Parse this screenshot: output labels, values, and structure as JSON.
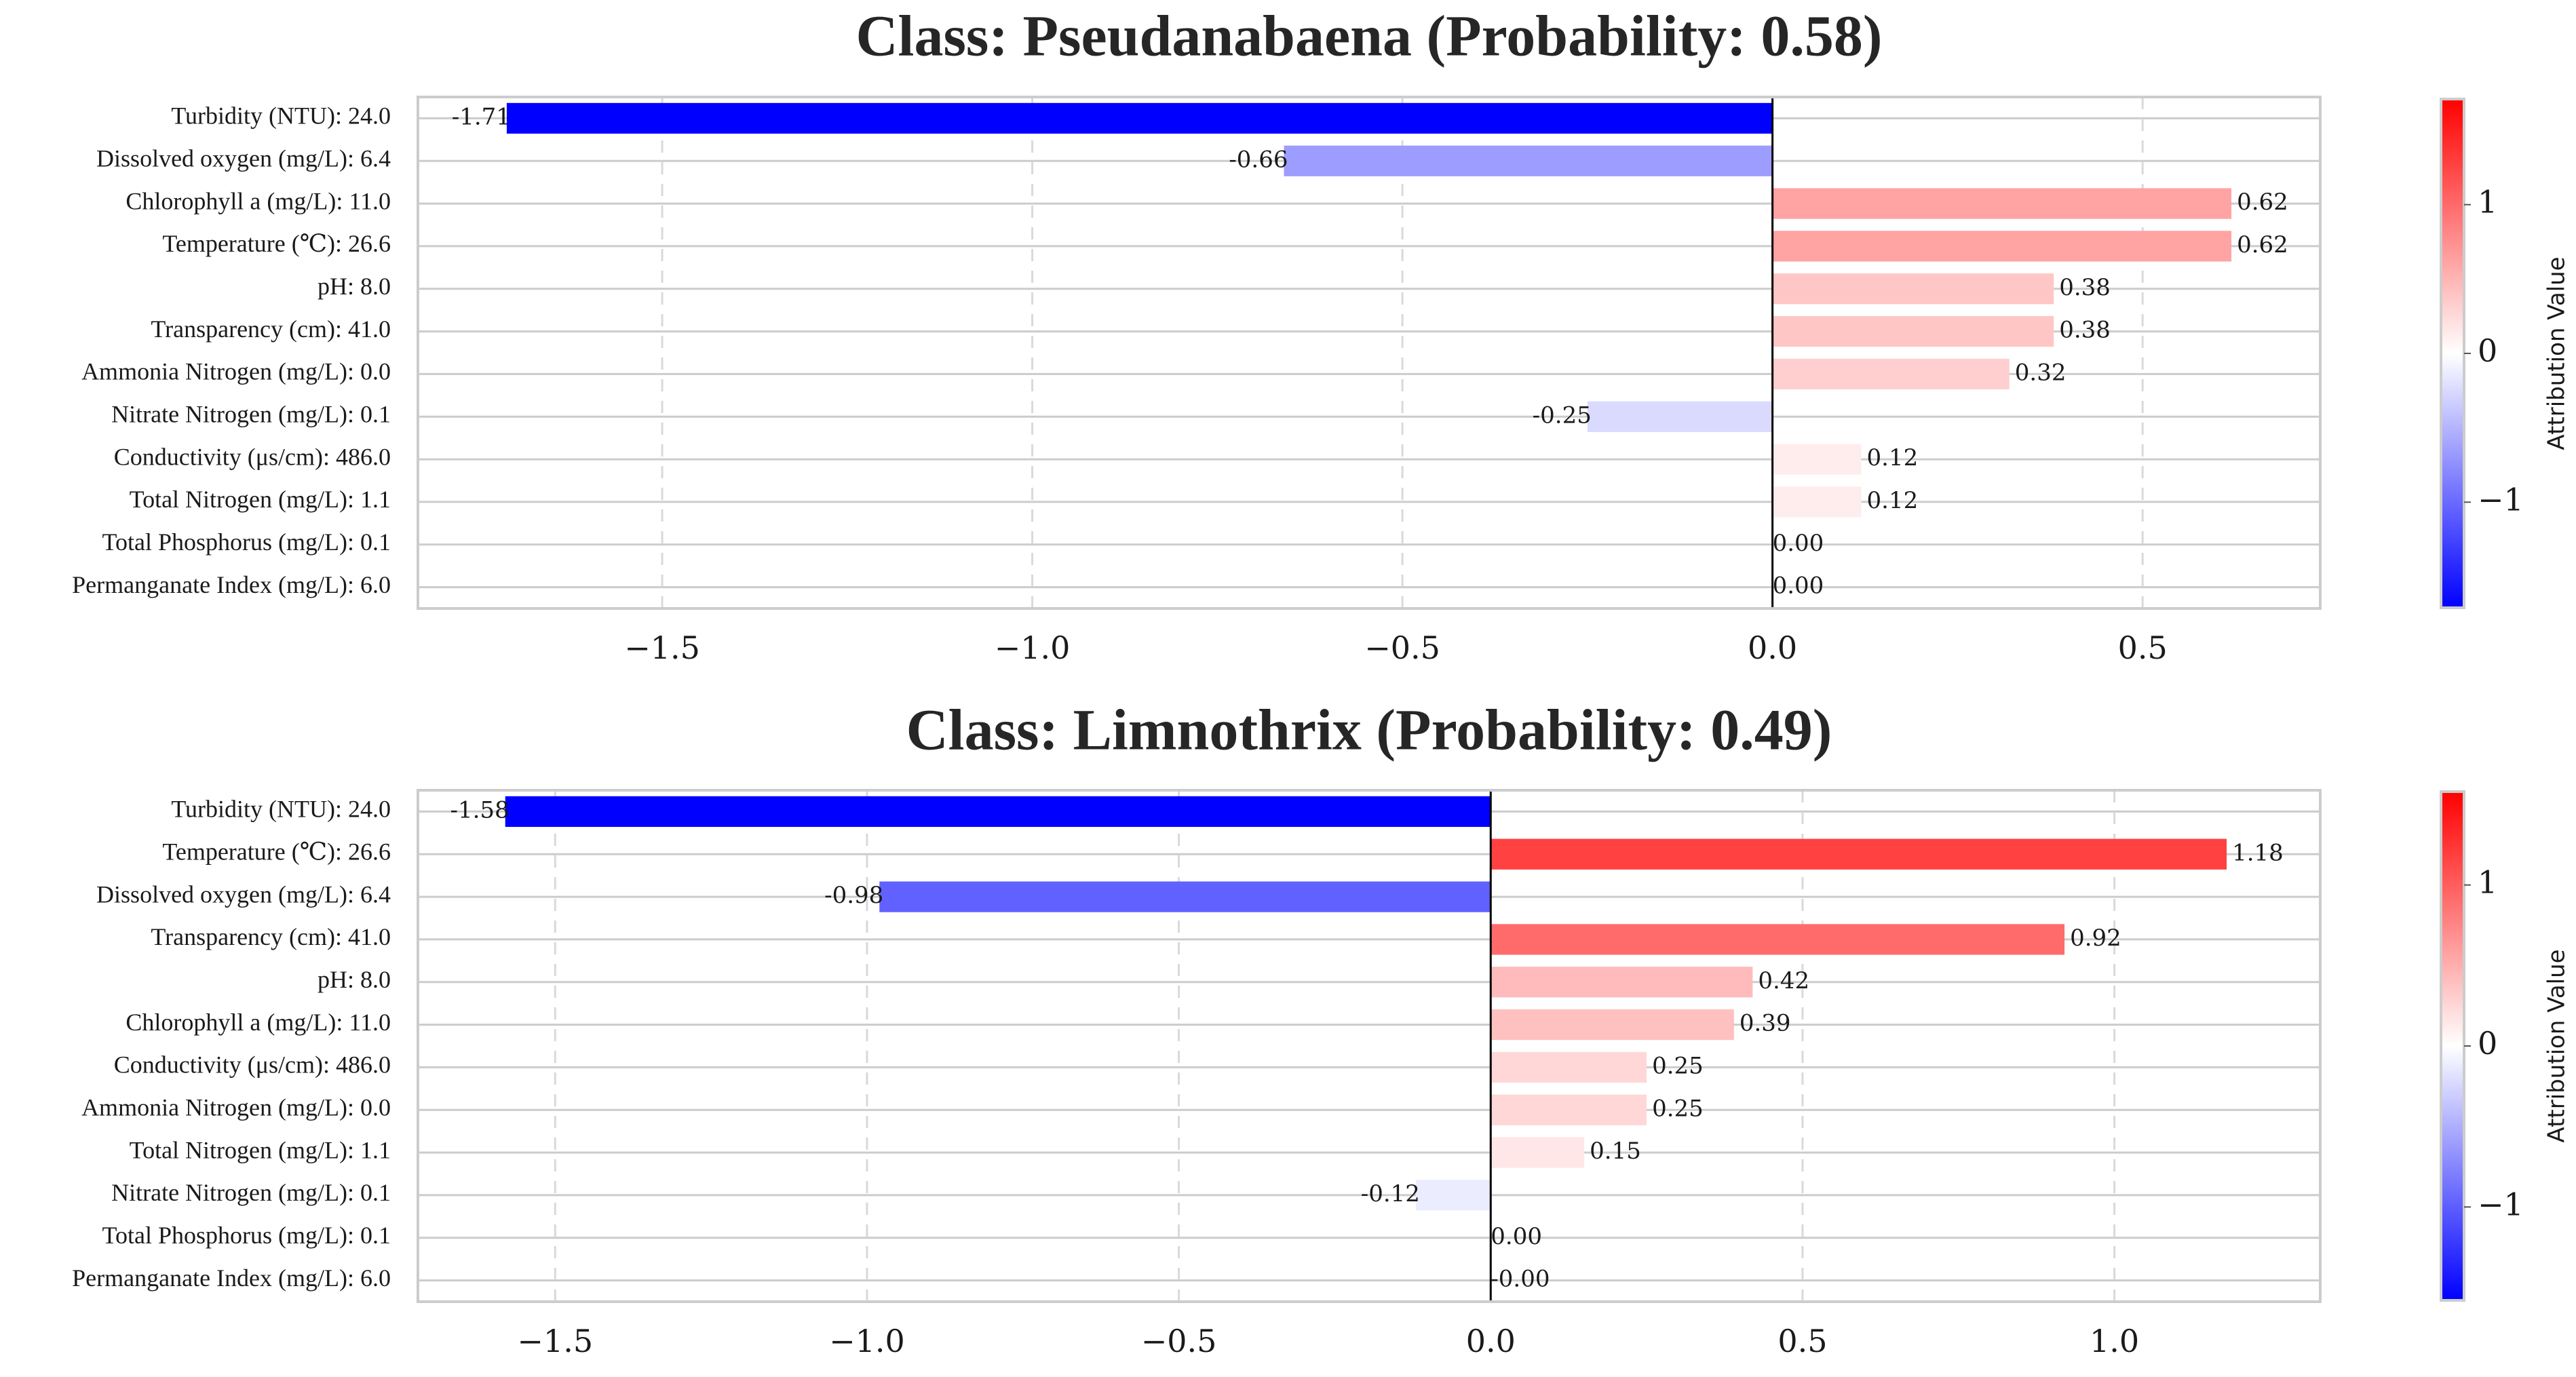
{
  "chart_data": [
    {
      "type": "bar",
      "orientation": "horizontal",
      "title": "Class: Pseudanabaena (Probability: 0.58)",
      "categories": [
        "Turbidity (NTU): 24.0",
        "Dissolved oxygen (mg/L): 6.4",
        "Chlorophyll a (mg/L): 11.0",
        "Temperature (℃): 26.6",
        "pH: 8.0",
        "Transparency (cm): 41.0",
        "Ammonia Nitrogen (mg/L): 0.0",
        "Nitrate Nitrogen (mg/L): 0.1",
        "Conductivity (μs/cm): 486.0",
        "Total Nitrogen (mg/L): 1.1",
        "Total Phosphorus (mg/L): 0.1",
        "Permanganate Index (mg/L): 6.0"
      ],
      "values": [
        -1.71,
        -0.66,
        0.62,
        0.62,
        0.38,
        0.38,
        0.32,
        -0.25,
        0.12,
        0.12,
        0.0,
        0.0
      ],
      "value_labels": [
        "-1.71",
        "-0.66",
        "0.62",
        "0.62",
        "0.38",
        "0.38",
        "0.32",
        "-0.25",
        "0.12",
        "0.12",
        "0.00",
        "0.00"
      ],
      "xlim": [
        -1.83,
        0.74
      ],
      "xticks": [
        -1.5,
        -1.0,
        -0.5,
        0.0,
        0.5
      ],
      "xtick_labels": [
        "−1.5",
        "−1.0",
        "−0.5",
        "0.0",
        "0.5"
      ],
      "grid": true,
      "colormap": "bwr",
      "colorbar": {
        "label": "Attribution Value",
        "range": [
          -1.71,
          1.71
        ],
        "ticks": [
          -1,
          0,
          1
        ],
        "tick_labels": [
          "−1",
          "0",
          "1"
        ]
      }
    },
    {
      "type": "bar",
      "orientation": "horizontal",
      "title": "Class: Limnothrix (Probability: 0.49)",
      "categories": [
        "Turbidity (NTU): 24.0",
        "Temperature (℃): 26.6",
        "Dissolved oxygen (mg/L): 6.4",
        "Transparency (cm): 41.0",
        "pH: 8.0",
        "Chlorophyll a (mg/L): 11.0",
        "Conductivity (μs/cm): 486.0",
        "Ammonia Nitrogen (mg/L): 0.0",
        "Total Nitrogen (mg/L): 1.1",
        "Nitrate Nitrogen (mg/L): 0.1",
        "Total Phosphorus (mg/L): 0.1",
        "Permanganate Index (mg/L): 6.0"
      ],
      "values": [
        -1.58,
        1.18,
        -0.98,
        0.92,
        0.42,
        0.39,
        0.25,
        0.25,
        0.15,
        -0.12,
        0.0,
        -0.0
      ],
      "value_labels": [
        "-1.58",
        "1.18",
        "-0.98",
        "0.92",
        "0.42",
        "0.39",
        "0.25",
        "0.25",
        "0.15",
        "-0.12",
        "0.00",
        "-0.00"
      ],
      "xlim": [
        -1.72,
        1.33
      ],
      "xticks": [
        -1.5,
        -1.0,
        -0.5,
        0.0,
        0.5,
        1.0
      ],
      "xtick_labels": [
        "−1.5",
        "−1.0",
        "−0.5",
        "0.0",
        "0.5",
        "1.0"
      ],
      "grid": true,
      "colormap": "bwr",
      "colorbar": {
        "label": "Attribution Value",
        "range": [
          -1.58,
          1.58
        ],
        "ticks": [
          -1,
          0,
          1
        ],
        "tick_labels": [
          "−1",
          "0",
          "1"
        ]
      }
    }
  ]
}
